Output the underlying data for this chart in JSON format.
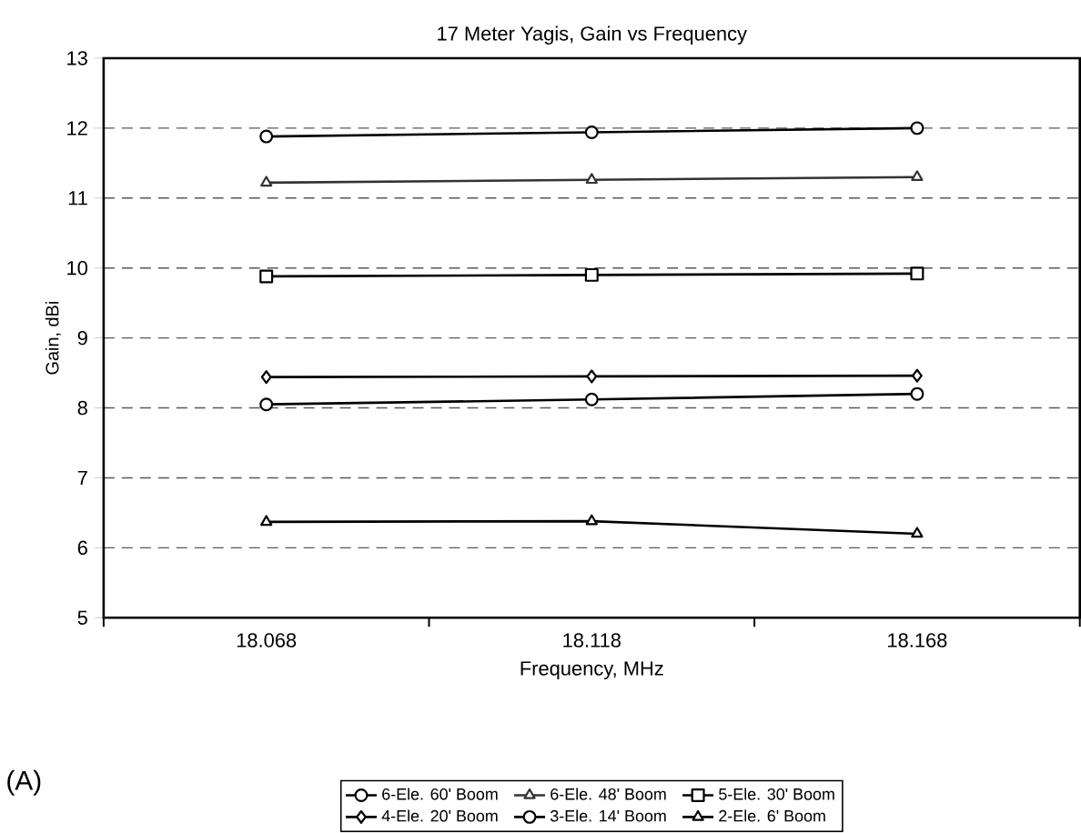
{
  "chart_data": {
    "type": "line",
    "title": "17 Meter Yagis, Gain vs Frequency",
    "xlabel": "Frequency, MHz",
    "ylabel": "Gain, dBi",
    "categories": [
      "18.068",
      "18.118",
      "18.168"
    ],
    "series": [
      {
        "name": "6-Ele. 60' Boom",
        "color": "#000000",
        "marker": "circle",
        "values": [
          11.88,
          11.94,
          12.0
        ]
      },
      {
        "name": "6-Ele. 48' Boom",
        "color": "#333333",
        "marker": "triangle",
        "values": [
          11.22,
          11.26,
          11.3
        ]
      },
      {
        "name": "5-Ele. 30' Boom",
        "color": "#000000",
        "marker": "square",
        "values": [
          9.88,
          9.9,
          9.92
        ]
      },
      {
        "name": "4-Ele. 20' Boom",
        "color": "#000000",
        "marker": "diamond",
        "values": [
          8.44,
          8.45,
          8.46
        ]
      },
      {
        "name": "3-Ele. 14' Boom",
        "color": "#000000",
        "marker": "circle",
        "values": [
          8.05,
          8.12,
          8.2
        ]
      },
      {
        "name": "2-Ele. 6' Boom",
        "color": "#000000",
        "marker": "triangle",
        "values": [
          6.37,
          6.38,
          6.2
        ]
      }
    ],
    "ylim": [
      5,
      13
    ],
    "yticks": [
      5,
      6,
      7,
      8,
      9,
      10,
      11,
      12,
      13
    ],
    "grid": "y",
    "legend": "bottom",
    "line_style": "solid",
    "annotations": [
      "(A)"
    ]
  }
}
